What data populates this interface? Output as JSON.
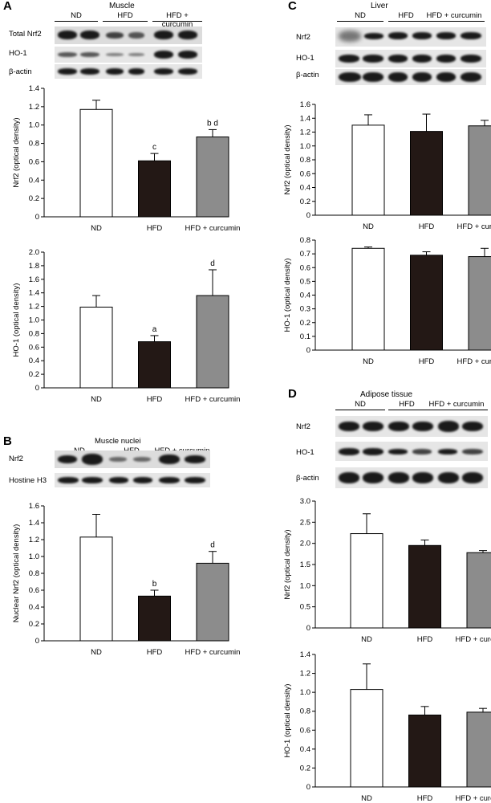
{
  "panels": [
    {
      "id": "A",
      "letter": "A",
      "tissue": "Muscle",
      "groups": [
        "ND",
        "HFD",
        "HFD + curcumin"
      ],
      "blots": [
        "Total Nrf2",
        "HO-1",
        "β-actin"
      ]
    },
    {
      "id": "B",
      "letter": "B",
      "tissue": "Muscle nuclei",
      "groups": [
        "ND",
        "HFD",
        "HFD + curcumin"
      ],
      "blots": [
        "Nrf2",
        "Hostine H3"
      ]
    },
    {
      "id": "C",
      "letter": "C",
      "tissue": "Liver",
      "groups": [
        "ND",
        "HFD",
        "HFD + curcumin"
      ],
      "blots": [
        "Nrf2",
        "HO-1",
        "β-actin"
      ]
    },
    {
      "id": "D",
      "letter": "D",
      "tissue": "Adipose tissue",
      "groups": [
        "ND",
        "HFD",
        "HFD + curcumin"
      ],
      "blots": [
        "Nrf2",
        "HO-1",
        "β-actin"
      ]
    }
  ],
  "colors": {
    "ND": "#ffffff",
    "HFD": "#231815",
    "HFD + curcumin": "#8c8c8c"
  },
  "chart_data": [
    {
      "type": "bar",
      "panel": "A",
      "categories": [
        "ND",
        "HFD",
        "HFD + curcumin"
      ],
      "values": [
        1.17,
        0.61,
        0.87
      ],
      "errors": [
        0.1,
        0.08,
        0.08
      ],
      "annotations": [
        "",
        "c",
        "b d"
      ],
      "ylabel": "Nrf2 (optical density)",
      "ylim": [
        0,
        1.4
      ],
      "yticks": [
        "0",
        "0.2",
        "0.4",
        "0.6",
        "0.8",
        "1.0",
        "1.2",
        "1.4"
      ]
    },
    {
      "type": "bar",
      "panel": "A",
      "categories": [
        "ND",
        "HFD",
        "HFD + curcumin"
      ],
      "values": [
        1.19,
        0.68,
        1.36
      ],
      "errors": [
        0.17,
        0.09,
        0.38
      ],
      "annotations": [
        "",
        "a",
        "d"
      ],
      "ylabel": "HO-1 (optical density)",
      "ylim": [
        0,
        2.0
      ],
      "yticks": [
        "0",
        "0.2",
        "0.4",
        "0.6",
        "0.8",
        "1.0",
        "1.2",
        "1.4",
        "1.6",
        "1.8",
        "2.0"
      ]
    },
    {
      "type": "bar",
      "panel": "B",
      "categories": [
        "ND",
        "HFD",
        "HFD + curcumin"
      ],
      "values": [
        1.23,
        0.53,
        0.92
      ],
      "errors": [
        0.27,
        0.07,
        0.14
      ],
      "annotations": [
        "",
        "b",
        "d"
      ],
      "ylabel": "Nuclear Nrf2 (optical density)",
      "ylim": [
        0,
        1.6
      ],
      "yticks": [
        "0",
        "0.2",
        "0.4",
        "0.6",
        "0.8",
        "1.0",
        "1.2",
        "1.4",
        "1.6"
      ]
    },
    {
      "type": "bar",
      "panel": "C",
      "categories": [
        "ND",
        "HFD",
        "HFD + curcumin"
      ],
      "values": [
        1.3,
        1.21,
        1.29
      ],
      "errors": [
        0.15,
        0.25,
        0.08
      ],
      "annotations": [
        "",
        "",
        ""
      ],
      "ylabel": "Nrf2 (optical density)",
      "ylim": [
        0,
        1.6
      ],
      "yticks": [
        "0",
        "0.2",
        "0.4",
        "0.6",
        "0.8",
        "1.0",
        "1.2",
        "1.4",
        "1.6"
      ]
    },
    {
      "type": "bar",
      "panel": "C",
      "categories": [
        "ND",
        "HFD",
        "HFD + curcumin"
      ],
      "values": [
        0.74,
        0.69,
        0.68
      ],
      "errors": [
        0.01,
        0.025,
        0.06
      ],
      "annotations": [
        "",
        "",
        ""
      ],
      "ylabel": "HO-1 (optical density)",
      "ylim": [
        0,
        0.8
      ],
      "yticks": [
        "0",
        "0.1",
        "0.2",
        "0.3",
        "0.4",
        "0.5",
        "0.6",
        "0.7",
        "0.8"
      ]
    },
    {
      "type": "bar",
      "panel": "D",
      "categories": [
        "ND",
        "HFD",
        "HFD + curcumin"
      ],
      "values": [
        2.23,
        1.95,
        1.78
      ],
      "errors": [
        0.47,
        0.13,
        0.05
      ],
      "annotations": [
        "",
        "",
        ""
      ],
      "ylabel": "Nrf2 (optical density)",
      "ylim": [
        0,
        3.0
      ],
      "yticks": [
        "0",
        "0.5",
        "1.0",
        "1.5",
        "2.0",
        "2.5",
        "3.0"
      ]
    },
    {
      "type": "bar",
      "panel": "D",
      "categories": [
        "ND",
        "HFD",
        "HFD + curcumin"
      ],
      "values": [
        1.03,
        0.76,
        0.79
      ],
      "errors": [
        0.27,
        0.09,
        0.04
      ],
      "annotations": [
        "",
        "",
        ""
      ],
      "ylabel": "HO-1 (optical density)",
      "ylim": [
        0,
        1.4
      ],
      "yticks": [
        "0",
        "0.2",
        "0.4",
        "0.6",
        "0.8",
        "1.0",
        "1.2",
        "1.4"
      ]
    }
  ]
}
